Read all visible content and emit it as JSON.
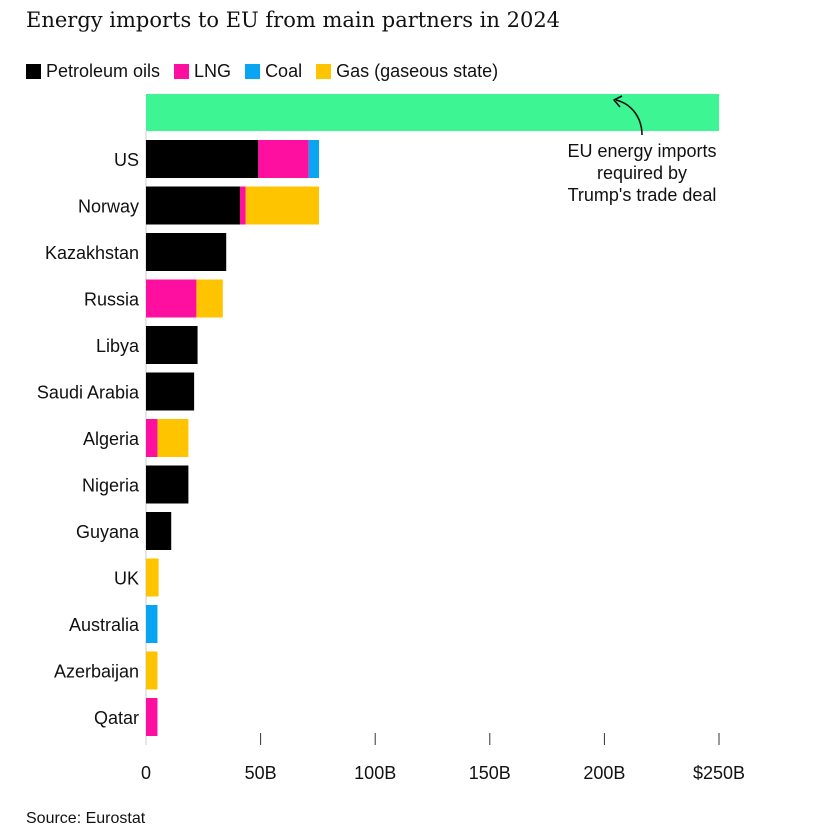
{
  "chart_data": {
    "type": "bar",
    "orientation": "horizontal",
    "stacked": true,
    "title": "Energy imports to EU from main partners in 2024",
    "source": "Source: Eurostat",
    "categories": [
      "US",
      "Norway",
      "Kazakhstan",
      "Russia",
      "Libya",
      "Saudi Arabia",
      "Algeria",
      "Nigeria",
      "Guyana",
      "UK",
      "Australia",
      "Azerbaijan",
      "Qatar"
    ],
    "series": [
      {
        "name": "Petroleum oils",
        "color": "#000000",
        "values": [
          49,
          41,
          35,
          0,
          22.5,
          21,
          0,
          18.5,
          11,
          0,
          0,
          0,
          0
        ]
      },
      {
        "name": "LNG",
        "color": "#ff0fa0",
        "values": [
          22,
          2.5,
          0,
          22,
          0,
          0,
          5,
          0,
          0,
          0,
          0,
          0,
          5
        ]
      },
      {
        "name": "Coal",
        "color": "#0aa5f2",
        "values": [
          4.5,
          0,
          0,
          0,
          0,
          0,
          0,
          0,
          0,
          0,
          5,
          0,
          0
        ]
      },
      {
        "name": "Gas (gaseous state)",
        "color": "#ffc400",
        "values": [
          0,
          32,
          0,
          11.5,
          0,
          0,
          13.5,
          0,
          0,
          5.5,
          0,
          5,
          0
        ]
      }
    ],
    "reference": {
      "value": 250,
      "color": "#3df593",
      "label": [
        "EU energy imports",
        "required by",
        "Trump's trade deal"
      ]
    },
    "xlim": [
      0,
      250
    ],
    "xticks": [
      0,
      50,
      100,
      150,
      200,
      250
    ],
    "xtick_labels": [
      "0",
      "50B",
      "100B",
      "150B",
      "200B",
      "$250B"
    ],
    "legend_position": "top-left",
    "grid": false
  }
}
